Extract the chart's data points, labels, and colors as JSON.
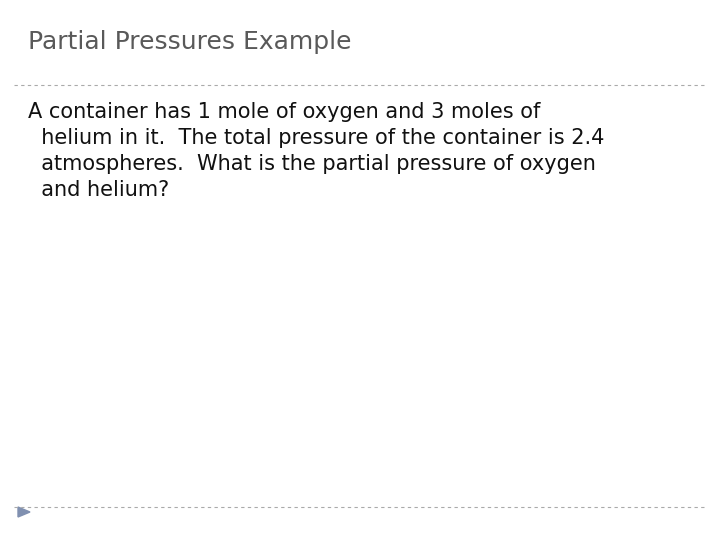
{
  "title": "Partial Pressures Example",
  "body_line1": "A container has 1 mole of oxygen and 3 moles of",
  "body_line2": "  helium in it.  The total pressure of the container is 2.4",
  "body_line3": "  atmospheres.  What is the partial pressure of oxygen",
  "body_line4": "  and helium?",
  "background_color": "#ffffff",
  "title_color": "#595959",
  "body_color": "#111111",
  "title_fontsize": 18,
  "body_fontsize": 15,
  "divider_color": "#aaaaaa",
  "triangle_color": "#8090b0"
}
